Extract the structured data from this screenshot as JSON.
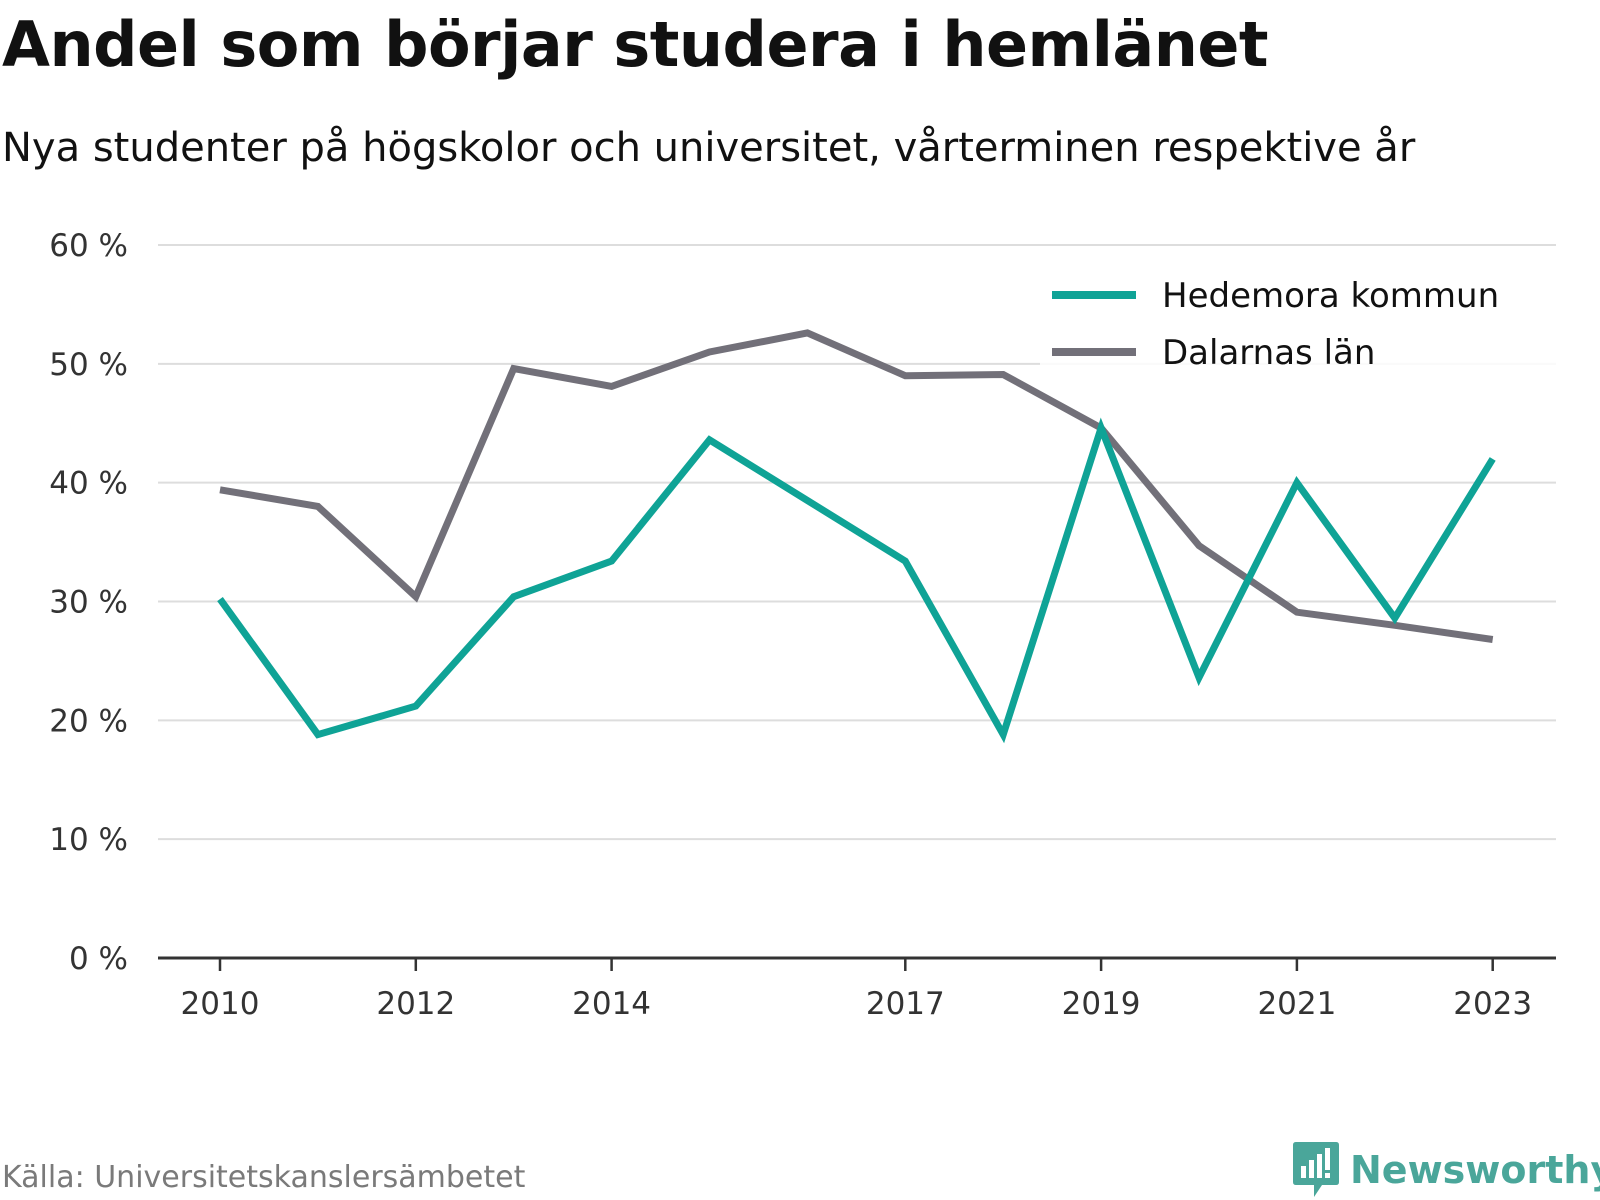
{
  "header": {
    "title": "Andel som börjar studera i hemlänet",
    "subtitle": "Nya studenter på högskolor och universitet, vårterminen respektive år"
  },
  "footer": {
    "source": "Källa: Universitetskanslersämbetet",
    "brand": "Newsworthy"
  },
  "chart_data": {
    "type": "line",
    "x": [
      2010,
      2011,
      2012,
      2013,
      2014,
      2015,
      2016,
      2017,
      2018,
      2019,
      2020,
      2021,
      2022,
      2023
    ],
    "x_tick_labels": [
      "2010",
      "2012",
      "2014",
      "2017",
      "2019",
      "2021",
      "2023"
    ],
    "x_tick_values": [
      2010,
      2012,
      2014,
      2017,
      2019,
      2021,
      2023
    ],
    "xlim": [
      2009.4,
      2023.6
    ],
    "ylim": [
      0,
      60
    ],
    "y_ticks": [
      0,
      10,
      20,
      30,
      40,
      50,
      60
    ],
    "y_tick_labels": [
      "0 %",
      "10 %",
      "20 %",
      "30 %",
      "40 %",
      "50 %",
      "60 %"
    ],
    "grid": true,
    "legend_position": "top-right",
    "series": [
      {
        "name": "Hedemora kommun",
        "color": "#0fa396",
        "values": [
          30.2,
          18.8,
          21.2,
          30.4,
          33.4,
          43.6,
          38.5,
          33.4,
          18.8,
          44.6,
          23.6,
          40.0,
          28.6,
          42.0
        ]
      },
      {
        "name": "Dalarnas län",
        "color": "#727079",
        "values": [
          39.4,
          38.0,
          30.4,
          49.6,
          48.1,
          51.0,
          52.6,
          49.0,
          49.1,
          44.6,
          34.7,
          29.1,
          28.0,
          26.8
        ]
      }
    ]
  },
  "colors": {
    "grid": "#dddddd",
    "axis": "#333333",
    "brand": "#4aa69a"
  },
  "icons": {
    "brand_logo": "bar-chart-speech-bubble-icon"
  }
}
